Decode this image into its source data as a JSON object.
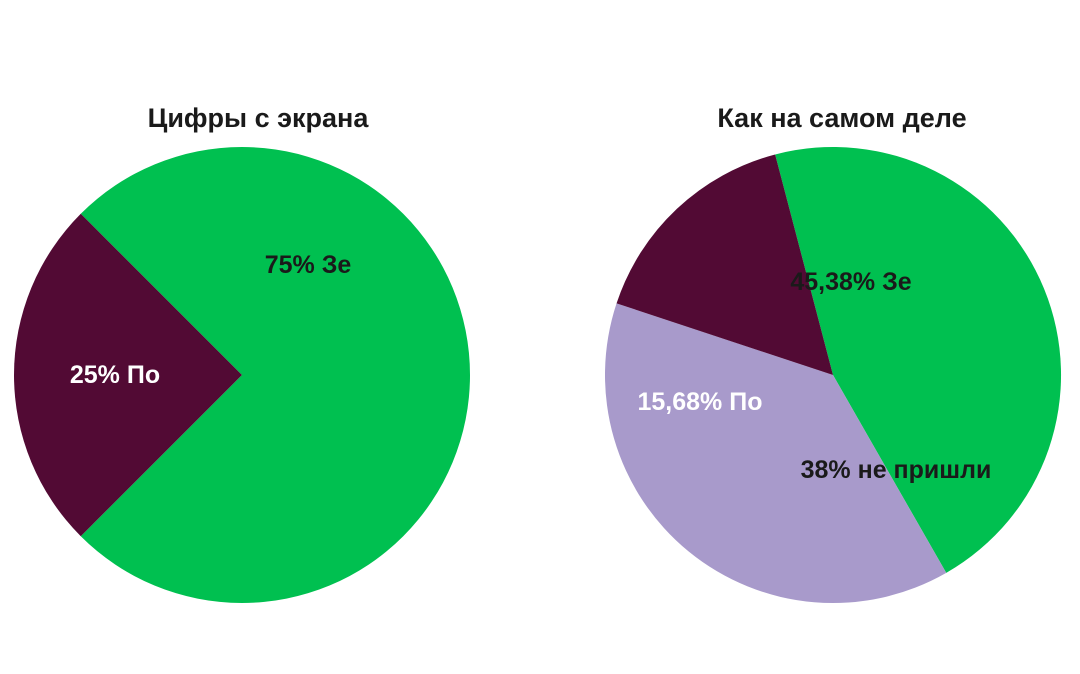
{
  "chart_data": [
    {
      "type": "pie",
      "title": "Цифры с экрана",
      "slices": [
        {
          "label": "75% Зе",
          "value": 75,
          "color": "#00c050",
          "label_color": "#1a1a1a"
        },
        {
          "label": "25% По",
          "value": 25,
          "color": "#520a34",
          "label_color": "#ffffff"
        }
      ]
    },
    {
      "type": "pie",
      "title": "Как на самом деле",
      "slices": [
        {
          "label": "45,38% Зе",
          "value": 45.38,
          "color": "#00c050",
          "label_color": "#1a1a1a"
        },
        {
          "label": "38% не пришли",
          "value": 38,
          "color": "#a89acb",
          "label_color": "#1a1a1a"
        },
        {
          "label": "15,68% По",
          "value": 15.68,
          "color": "#520a34",
          "label_color": "#ffffff"
        }
      ]
    }
  ]
}
